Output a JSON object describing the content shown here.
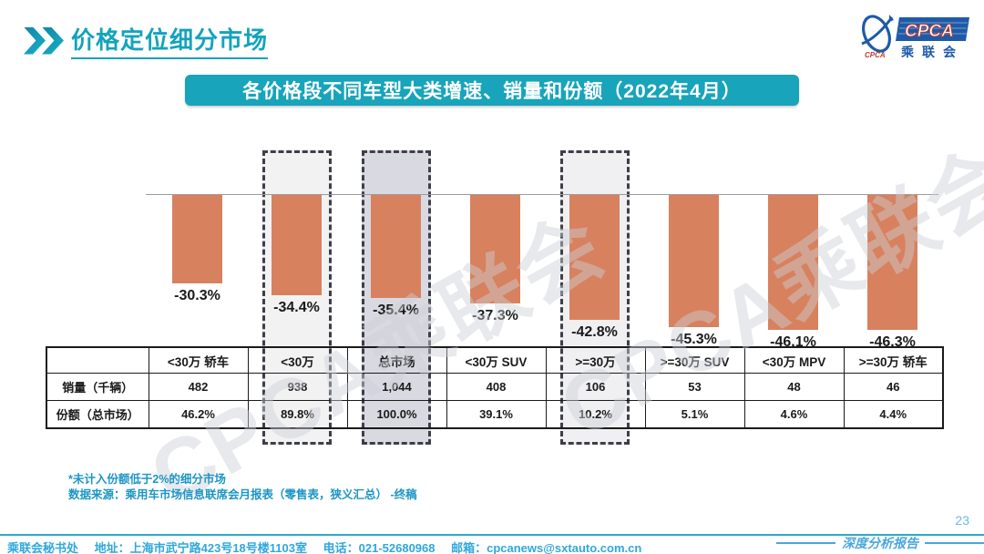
{
  "slide": {
    "page_number": "23",
    "report_label": "深度分析报告"
  },
  "header": {
    "title": "价格定位细分市场"
  },
  "logo": {
    "acronym": "CPCA",
    "chinese": "乘联会",
    "mark_caption": "CPCA",
    "brand_blue": "#1e5aa8",
    "brand_red": "#c2392e"
  },
  "banner": {
    "text": "各价格段不同车型大类增速、销量和份额（2022年4月）"
  },
  "chart_data": {
    "type": "bar",
    "title": "各价格段不同车型大类增速、销量和份额（2022年4月）",
    "categories": [
      "<30万 轿车",
      "<30万",
      "总市场",
      "<30万 SUV",
      ">=30万",
      ">=30万 SUV",
      "<30万 MPV",
      ">=30万 轿车"
    ],
    "series": [
      {
        "name": "同比增速",
        "unit": "%",
        "values": [
          -30.3,
          -34.4,
          -35.4,
          -37.3,
          -42.8,
          -45.3,
          -46.1,
          -46.3
        ]
      }
    ],
    "bar_labels": [
      "-30.3%",
      "-34.4%",
      "-35.4%",
      "-37.3%",
      "-42.8%",
      "-45.3%",
      "-46.1%",
      "-46.3%"
    ],
    "bar_color": "#d8815f",
    "baseline_color": "#9b9b9b",
    "ylim": [
      -50,
      5
    ],
    "grid": false,
    "legend_position": "none",
    "highlights": [
      {
        "category": "<30万",
        "fill": "#f2f2f3"
      },
      {
        "category": "总市场",
        "fill": "#d9d9e2"
      },
      {
        "category": ">=30万",
        "fill": "#f0f0f3"
      }
    ]
  },
  "table": {
    "corner_label": "",
    "row_headers": [
      "销量（千辆）",
      "份额（总市场）"
    ],
    "rows": [
      [
        "482",
        "938",
        "1,044",
        "408",
        "106",
        "53",
        "48",
        "46"
      ],
      [
        "46.2%",
        "89.8%",
        "100.0%",
        "39.1%",
        "10.2%",
        "5.1%",
        "4.6%",
        "4.4%"
      ]
    ]
  },
  "watermark": {
    "text": "CPCA乘联会"
  },
  "footnotes": {
    "line1": "*未计入份额低于2%的细分市场",
    "line2": "数据来源：乘用车市场信息联席会月报表（零售表，狭义汇总） -终稿"
  },
  "footer": {
    "segments": [
      "乘联会秘书处",
      "地址：上海市武宁路423号18号楼1103室",
      "电话：021-52680968",
      "邮箱：cpcanews@sxtauto.com.cn"
    ]
  }
}
